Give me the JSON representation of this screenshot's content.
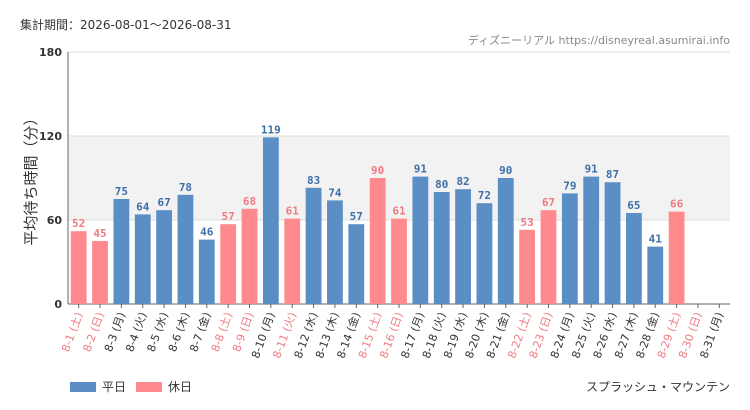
{
  "header": {
    "period": "集計期間：2026-08-01〜2026-08-31",
    "credit": "ディズニーリアル https://disneyreal.asumirai.info"
  },
  "legend": [
    {
      "label": "平日",
      "color": "#5b8ec4"
    },
    {
      "label": "休日",
      "color": "#ff8a8e"
    }
  ],
  "attraction": "スプラッシュ・マウンテン",
  "chart_data": {
    "type": "bar",
    "ylabel": "平均待ち時間（分）",
    "ylim": [
      0,
      180
    ],
    "yticks": [
      0,
      60,
      120,
      180
    ],
    "shaded_band": [
      60,
      120
    ],
    "colors": {
      "weekday": "#5b8ec4",
      "holiday": "#ff8a8e",
      "weekday_label": "#3f6fa8",
      "holiday_label": "#f07a80"
    },
    "categories": [
      "8-1 (土)",
      "8-2 (日)",
      "8-3 (月)",
      "8-4 (火)",
      "8-5 (水)",
      "8-6 (木)",
      "8-7 (金)",
      "8-8 (土)",
      "8-9 (日)",
      "8-10 (月)",
      "8-11 (火)",
      "8-12 (水)",
      "8-13 (木)",
      "8-14 (金)",
      "8-15 (土)",
      "8-16 (日)",
      "8-17 (月)",
      "8-18 (火)",
      "8-19 (水)",
      "8-20 (木)",
      "8-21 (金)",
      "8-22 (土)",
      "8-23 (日)",
      "8-24 (月)",
      "8-25 (火)",
      "8-26 (水)",
      "8-27 (木)",
      "8-28 (金)",
      "8-29 (土)",
      "8-30 (日)",
      "8-31 (月)"
    ],
    "values": [
      52,
      45,
      75,
      64,
      67,
      78,
      46,
      57,
      68,
      119,
      61,
      83,
      74,
      57,
      90,
      61,
      91,
      80,
      82,
      72,
      90,
      53,
      67,
      79,
      91,
      87,
      65,
      41,
      66,
      null,
      null
    ],
    "holiday": [
      true,
      true,
      false,
      false,
      false,
      false,
      false,
      true,
      true,
      false,
      true,
      false,
      false,
      false,
      true,
      true,
      false,
      false,
      false,
      false,
      false,
      true,
      true,
      false,
      false,
      false,
      false,
      false,
      true,
      true,
      false
    ]
  }
}
